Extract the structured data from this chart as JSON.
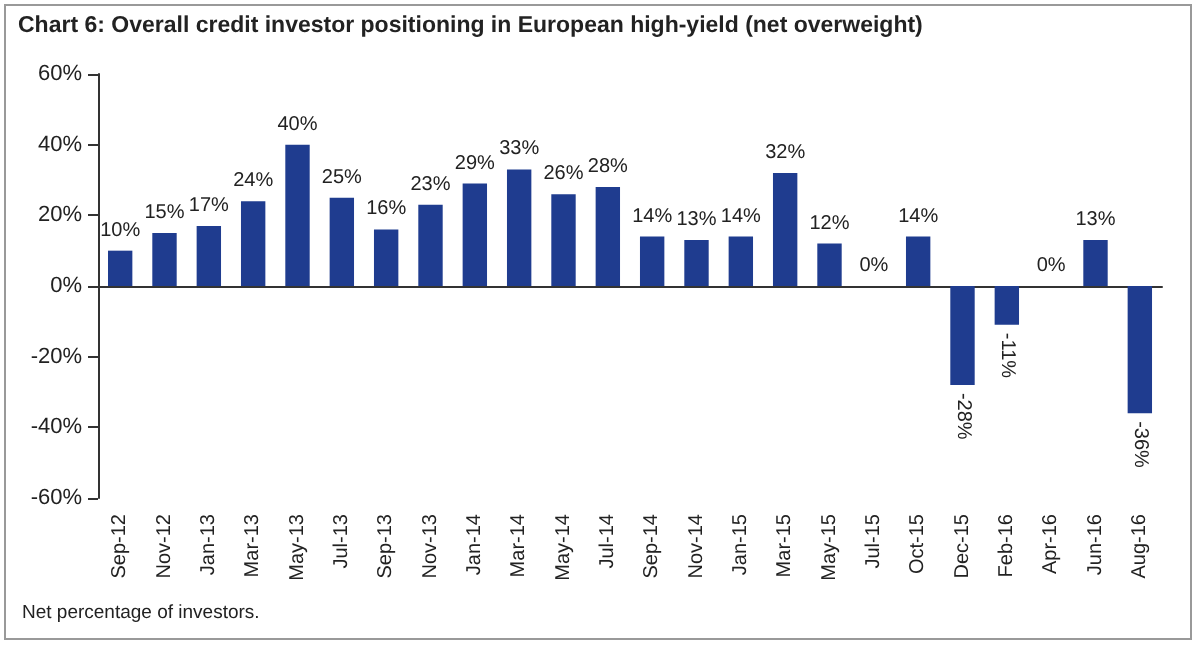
{
  "chart_data": {
    "type": "bar",
    "title": "Chart 6: Overall credit investor positioning in European high-yield (net overweight)",
    "categories": [
      "Sep-12",
      "Nov-12",
      "Jan-13",
      "Mar-13",
      "May-13",
      "Jul-13",
      "Sep-13",
      "Nov-13",
      "Jan-14",
      "Mar-14",
      "May-14",
      "Jul-14",
      "Sep-14",
      "Nov-14",
      "Jan-15",
      "Mar-15",
      "May-15",
      "Jul-15",
      "Oct-15",
      "Dec-15",
      "Feb-16",
      "Apr-16",
      "Jun-16",
      "Aug-16"
    ],
    "values": [
      10,
      15,
      17,
      24,
      40,
      25,
      16,
      23,
      29,
      33,
      26,
      28,
      14,
      13,
      14,
      32,
      12,
      0,
      14,
      -28,
      -11,
      0,
      13,
      -36
    ],
    "value_labels": [
      "10%",
      "15%",
      "17%",
      "24%",
      "40%",
      "25%",
      "16%",
      "23%",
      "29%",
      "33%",
      "26%",
      "28%",
      "14%",
      "13%",
      "14%",
      "32%",
      "12%",
      "0%",
      "14%",
      "-28%",
      "-11%",
      "0%",
      "13%",
      "-36%"
    ],
    "color": "#1f3c8f",
    "ylim": [
      -60,
      60
    ],
    "yticks": [
      {
        "value": -60,
        "label": "-60%"
      },
      {
        "value": -40,
        "label": "-40%"
      },
      {
        "value": -20,
        "label": "-20%"
      },
      {
        "value": 0,
        "label": "0%"
      },
      {
        "value": 20,
        "label": "20%"
      },
      {
        "value": 40,
        "label": "40%"
      },
      {
        "value": 60,
        "label": "60%"
      }
    ],
    "annotations": [
      "Net percentage of investors."
    ]
  }
}
